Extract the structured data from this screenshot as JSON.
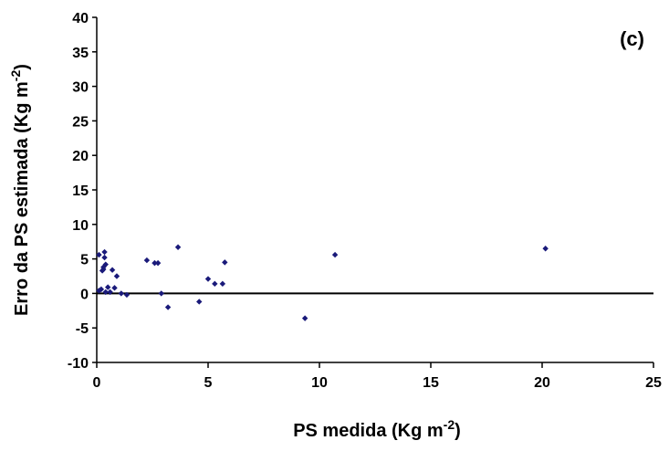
{
  "chart_data": {
    "type": "scatter",
    "panel_label": "(c)",
    "xlabel": "PS medida (Kg m",
    "xlabel_sup": "-2",
    "xlabel_end": ")",
    "ylabel": "Erro da PS estimada (Kg m",
    "ylabel_sup": "-2",
    "ylabel_end": ")",
    "xlim": [
      0,
      25
    ],
    "ylim": [
      -10,
      40
    ],
    "xticks": [
      0,
      5,
      10,
      15,
      20,
      25
    ],
    "yticks": [
      -10,
      -5,
      0,
      5,
      10,
      15,
      20,
      25,
      30,
      35,
      40
    ],
    "reference_line_y": 0,
    "grid": false,
    "marker_color": "#1a1a7a",
    "series": [
      {
        "points": [
          [
            0.1,
            5.6
          ],
          [
            0.1,
            0.4
          ],
          [
            0.2,
            0.6
          ],
          [
            0.25,
            3.3
          ],
          [
            0.3,
            3.8
          ],
          [
            0.3,
            3.5
          ],
          [
            0.35,
            6.0
          ],
          [
            0.35,
            5.2
          ],
          [
            0.4,
            4.2
          ],
          [
            0.4,
            0.2
          ],
          [
            0.5,
            0.9
          ],
          [
            0.6,
            0.2
          ],
          [
            0.7,
            3.4
          ],
          [
            0.8,
            0.8
          ],
          [
            0.9,
            2.5
          ],
          [
            1.1,
            0.0
          ],
          [
            1.35,
            -0.2
          ],
          [
            2.25,
            4.8
          ],
          [
            2.6,
            4.4
          ],
          [
            2.75,
            4.4
          ],
          [
            2.9,
            0.0
          ],
          [
            3.2,
            -2.0
          ],
          [
            3.65,
            6.7
          ],
          [
            4.6,
            -1.2
          ],
          [
            5.0,
            2.1
          ],
          [
            5.3,
            1.4
          ],
          [
            5.65,
            1.4
          ],
          [
            5.75,
            4.5
          ],
          [
            9.35,
            -3.6
          ],
          [
            10.7,
            5.6
          ],
          [
            20.15,
            6.5
          ]
        ]
      }
    ]
  }
}
